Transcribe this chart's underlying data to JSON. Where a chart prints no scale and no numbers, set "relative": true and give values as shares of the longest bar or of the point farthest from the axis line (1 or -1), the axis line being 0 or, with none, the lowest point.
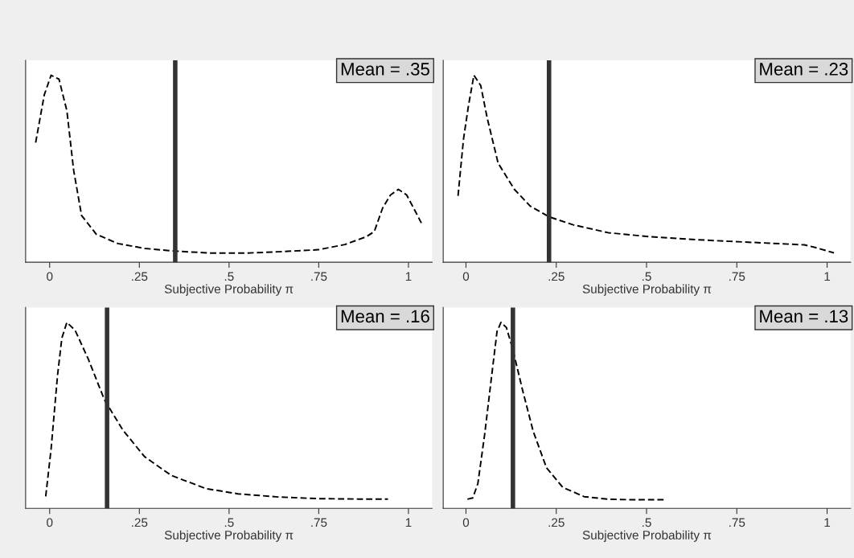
{
  "chart_data": [
    {
      "type": "line",
      "relative": true,
      "xlabel": "Subjective Probability π",
      "xlim": [
        -0.067,
        1.066
      ],
      "xticks": [
        0,
        {
          "value": 0.25,
          "label": ".25"
        },
        {
          "value": 0.5,
          "label": ".5"
        },
        {
          "value": 0.75,
          "label": ".75"
        },
        1
      ],
      "tick_labels": "x",
      "line_style": "dashed",
      "annotations": [
        "Mean = .35"
      ],
      "ref_lines": [
        {
          "axis": "x",
          "value": 0.35,
          "label": null,
          "color": "#333333"
        }
      ],
      "series": [
        {
          "color": "#000000",
          "x": [
            -0.039,
            -0.015,
            0.004,
            0.026,
            0.048,
            0.067,
            0.089,
            0.13,
            0.19,
            0.265,
            0.347,
            0.45,
            0.548,
            0.637,
            0.749,
            0.823,
            0.883,
            0.905,
            0.928,
            0.95,
            0.972,
            0.995,
            1.017,
            1.036
          ],
          "values": [
            0.64,
            0.895,
            1.0,
            0.979,
            0.81,
            0.49,
            0.25,
            0.15,
            0.1,
            0.074,
            0.06,
            0.049,
            0.049,
            0.056,
            0.067,
            0.095,
            0.137,
            0.165,
            0.29,
            0.36,
            0.39,
            0.36,
            0.28,
            0.21
          ]
        }
      ]
    },
    {
      "type": "line",
      "relative": true,
      "xlabel": "Subjective Probability π",
      "xlim": [
        -0.063,
        1.065
      ],
      "xticks": [
        0,
        {
          "value": 0.25,
          "label": ".25"
        },
        {
          "value": 0.5,
          "label": ".5"
        },
        {
          "value": 0.75,
          "label": ".75"
        },
        1
      ],
      "tick_labels": "x",
      "line_style": "dashed",
      "annotations": [
        "Mean = .23"
      ],
      "ref_lines": [
        {
          "axis": "x",
          "value": 0.23,
          "label": null,
          "color": "#333333"
        }
      ],
      "series": [
        {
          "color": "#000000",
          "x": [
            -0.022,
            -0.007,
            0.007,
            0.022,
            0.041,
            0.059,
            0.089,
            0.134,
            0.178,
            0.23,
            0.297,
            0.394,
            0.506,
            0.617,
            0.729,
            0.84,
            0.937,
            0.967,
            1.019
          ],
          "values": [
            0.355,
            0.656,
            0.839,
            1.0,
            0.944,
            0.769,
            0.53,
            0.39,
            0.3,
            0.243,
            0.2,
            0.158,
            0.137,
            0.123,
            0.112,
            0.102,
            0.093,
            0.079,
            0.05
          ]
        }
      ]
    },
    {
      "type": "line",
      "relative": true,
      "xlabel": "Subjective Probability π",
      "xlim": [
        -0.067,
        1.066
      ],
      "xticks": [
        0,
        {
          "value": 0.25,
          "label": ".25"
        },
        {
          "value": 0.5,
          "label": ".5"
        },
        {
          "value": 0.75,
          "label": ".75"
        },
        1
      ],
      "tick_labels": "x",
      "line_style": "dashed",
      "annotations": [
        "Mean = .16"
      ],
      "ref_lines": [
        {
          "axis": "x",
          "value": 0.16,
          "label": null,
          "color": "#333333"
        }
      ],
      "series": [
        {
          "color": "#000000",
          "x": [
            -0.011,
            0.004,
            0.022,
            0.034,
            0.048,
            0.071,
            0.108,
            0.153,
            0.205,
            0.265,
            0.339,
            0.436,
            0.525,
            0.637,
            0.749,
            0.861,
            0.943
          ],
          "values": [
            0.064,
            0.319,
            0.716,
            0.915,
            1.0,
            0.957,
            0.801,
            0.582,
            0.418,
            0.277,
            0.177,
            0.106,
            0.078,
            0.061,
            0.052,
            0.05,
            0.05
          ]
        }
      ]
    },
    {
      "type": "line",
      "relative": true,
      "xlabel": "Subjective Probability π",
      "xlim": [
        -0.063,
        1.065
      ],
      "xticks": [
        0,
        {
          "value": 0.25,
          "label": ".25"
        },
        {
          "value": 0.5,
          "label": ".5"
        },
        {
          "value": 0.75,
          "label": ".75"
        },
        1
      ],
      "tick_labels": "x",
      "line_style": "dashed",
      "annotations": [
        "Mean = .13"
      ],
      "ref_lines": [
        {
          "axis": "x",
          "value": 0.13,
          "label": null,
          "color": "#333333"
        }
      ],
      "series": [
        {
          "color": "#000000",
          "x": [
            0.004,
            0.019,
            0.033,
            0.052,
            0.071,
            0.086,
            0.097,
            0.112,
            0.13,
            0.156,
            0.186,
            0.223,
            0.268,
            0.327,
            0.394,
            0.468,
            0.55
          ],
          "values": [
            0.049,
            0.056,
            0.134,
            0.401,
            0.711,
            0.951,
            1.0,
            0.972,
            0.852,
            0.641,
            0.415,
            0.218,
            0.113,
            0.063,
            0.049,
            0.046,
            0.046
          ]
        }
      ]
    }
  ]
}
